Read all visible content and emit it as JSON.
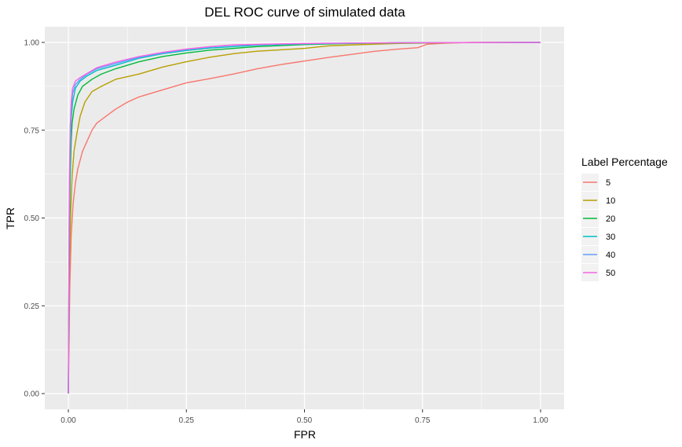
{
  "chart_data": {
    "type": "line",
    "title": "DEL ROC curve of simulated data",
    "xlabel": "FPR",
    "ylabel": "TPR",
    "xlim": [
      0,
      1
    ],
    "ylim": [
      0,
      1
    ],
    "x_ticks": [
      "0.00",
      "0.25",
      "0.50",
      "0.75",
      "1.00"
    ],
    "y_ticks": [
      "0.00",
      "0.25",
      "0.50",
      "0.75",
      "1.00"
    ],
    "grid": true,
    "legend_title": "Label Percentage",
    "legend_position": "right",
    "series": [
      {
        "name": "5",
        "color": "#F8766D",
        "points": [
          [
            0,
            0
          ],
          [
            0.003,
            0.3
          ],
          [
            0.006,
            0.45
          ],
          [
            0.01,
            0.54
          ],
          [
            0.015,
            0.6
          ],
          [
            0.02,
            0.64
          ],
          [
            0.03,
            0.69
          ],
          [
            0.04,
            0.72
          ],
          [
            0.05,
            0.75
          ],
          [
            0.06,
            0.77
          ],
          [
            0.08,
            0.79
          ],
          [
            0.1,
            0.81
          ],
          [
            0.125,
            0.83
          ],
          [
            0.15,
            0.845
          ],
          [
            0.2,
            0.865
          ],
          [
            0.25,
            0.885
          ],
          [
            0.3,
            0.897
          ],
          [
            0.35,
            0.91
          ],
          [
            0.4,
            0.925
          ],
          [
            0.45,
            0.937
          ],
          [
            0.5,
            0.947
          ],
          [
            0.55,
            0.957
          ],
          [
            0.6,
            0.966
          ],
          [
            0.65,
            0.975
          ],
          [
            0.7,
            0.981
          ],
          [
            0.74,
            0.985
          ],
          [
            0.76,
            0.995
          ],
          [
            0.8,
            0.998
          ],
          [
            0.85,
            1.0
          ],
          [
            1.0,
            1.0
          ]
        ]
      },
      {
        "name": "10",
        "color": "#B79F00",
        "points": [
          [
            0,
            0
          ],
          [
            0.002,
            0.35
          ],
          [
            0.005,
            0.52
          ],
          [
            0.008,
            0.62
          ],
          [
            0.012,
            0.69
          ],
          [
            0.018,
            0.74
          ],
          [
            0.025,
            0.79
          ],
          [
            0.035,
            0.83
          ],
          [
            0.05,
            0.86
          ],
          [
            0.07,
            0.875
          ],
          [
            0.1,
            0.895
          ],
          [
            0.15,
            0.91
          ],
          [
            0.2,
            0.93
          ],
          [
            0.25,
            0.945
          ],
          [
            0.3,
            0.958
          ],
          [
            0.35,
            0.968
          ],
          [
            0.4,
            0.975
          ],
          [
            0.5,
            0.983
          ],
          [
            0.55,
            0.99
          ],
          [
            0.6,
            0.993
          ],
          [
            0.7,
            0.997
          ],
          [
            0.8,
            0.999
          ],
          [
            1.0,
            1.0
          ]
        ]
      },
      {
        "name": "20",
        "color": "#00BA38",
        "points": [
          [
            0,
            0
          ],
          [
            0.002,
            0.45
          ],
          [
            0.004,
            0.62
          ],
          [
            0.006,
            0.72
          ],
          [
            0.008,
            0.77
          ],
          [
            0.012,
            0.81
          ],
          [
            0.02,
            0.85
          ],
          [
            0.03,
            0.875
          ],
          [
            0.05,
            0.895
          ],
          [
            0.07,
            0.91
          ],
          [
            0.1,
            0.925
          ],
          [
            0.15,
            0.945
          ],
          [
            0.2,
            0.96
          ],
          [
            0.25,
            0.97
          ],
          [
            0.3,
            0.978
          ],
          [
            0.4,
            0.988
          ],
          [
            0.5,
            0.994
          ],
          [
            0.6,
            0.997
          ],
          [
            0.7,
            0.999
          ],
          [
            1.0,
            1.0
          ]
        ]
      },
      {
        "name": "30",
        "color": "#00BFC4",
        "points": [
          [
            0,
            0
          ],
          [
            0.002,
            0.5
          ],
          [
            0.004,
            0.68
          ],
          [
            0.006,
            0.78
          ],
          [
            0.009,
            0.83
          ],
          [
            0.015,
            0.87
          ],
          [
            0.025,
            0.89
          ],
          [
            0.04,
            0.905
          ],
          [
            0.06,
            0.92
          ],
          [
            0.1,
            0.935
          ],
          [
            0.15,
            0.955
          ],
          [
            0.2,
            0.968
          ],
          [
            0.25,
            0.977
          ],
          [
            0.3,
            0.984
          ],
          [
            0.4,
            0.992
          ],
          [
            0.5,
            0.996
          ],
          [
            0.6,
            0.998
          ],
          [
            0.75,
            0.999
          ],
          [
            1.0,
            1.0
          ]
        ]
      },
      {
        "name": "40",
        "color": "#619CFF",
        "points": [
          [
            0,
            0
          ],
          [
            0.002,
            0.55
          ],
          [
            0.004,
            0.72
          ],
          [
            0.006,
            0.81
          ],
          [
            0.009,
            0.855
          ],
          [
            0.015,
            0.88
          ],
          [
            0.025,
            0.895
          ],
          [
            0.04,
            0.91
          ],
          [
            0.06,
            0.925
          ],
          [
            0.1,
            0.94
          ],
          [
            0.15,
            0.958
          ],
          [
            0.2,
            0.97
          ],
          [
            0.25,
            0.98
          ],
          [
            0.3,
            0.987
          ],
          [
            0.35,
            0.992
          ],
          [
            0.45,
            0.995
          ],
          [
            0.55,
            0.997
          ],
          [
            0.7,
            0.999
          ],
          [
            1.0,
            1.0
          ]
        ]
      },
      {
        "name": "50",
        "color": "#F564E3",
        "points": [
          [
            0,
            0
          ],
          [
            0.002,
            0.6
          ],
          [
            0.004,
            0.76
          ],
          [
            0.006,
            0.83
          ],
          [
            0.009,
            0.87
          ],
          [
            0.015,
            0.89
          ],
          [
            0.025,
            0.9
          ],
          [
            0.04,
            0.912
          ],
          [
            0.06,
            0.928
          ],
          [
            0.1,
            0.944
          ],
          [
            0.15,
            0.96
          ],
          [
            0.2,
            0.972
          ],
          [
            0.25,
            0.981
          ],
          [
            0.3,
            0.988
          ],
          [
            0.35,
            0.993
          ],
          [
            0.45,
            0.996
          ],
          [
            0.55,
            0.998
          ],
          [
            0.7,
            0.999
          ],
          [
            1.0,
            1.0
          ]
        ]
      }
    ]
  }
}
